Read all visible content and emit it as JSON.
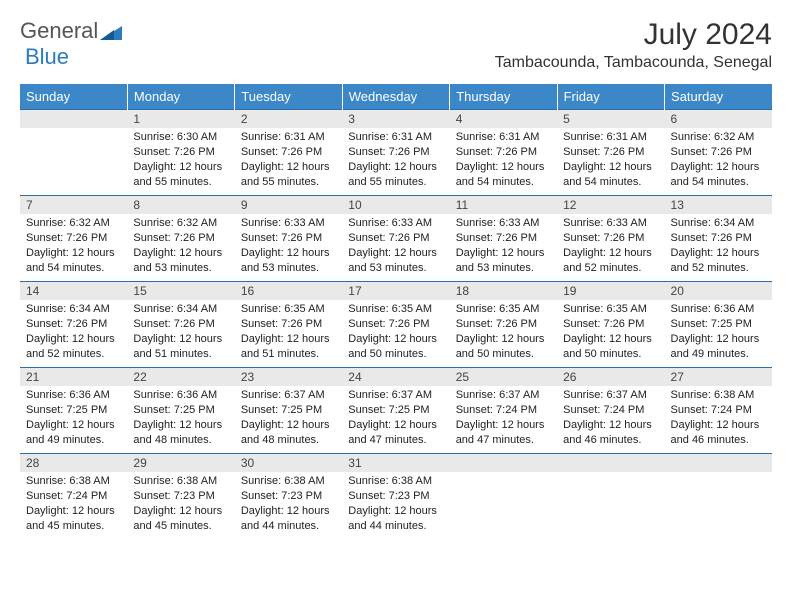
{
  "logo": {
    "text1": "General",
    "text2": "Blue"
  },
  "title": "July 2024",
  "location": "Tambacounda, Tambacounda, Senegal",
  "colors": {
    "header_bg": "#3c87c7",
    "header_text": "#ffffff",
    "daynum_bg": "#e9e9e9",
    "row_divider": "#2b6fa8",
    "logo_gray": "#555555",
    "logo_blue": "#2b7bbf"
  },
  "day_headers": [
    "Sunday",
    "Monday",
    "Tuesday",
    "Wednesday",
    "Thursday",
    "Friday",
    "Saturday"
  ],
  "weeks": [
    [
      {
        "num": "",
        "sunrise": "",
        "sunset": "",
        "daylight": ""
      },
      {
        "num": "1",
        "sunrise": "Sunrise: 6:30 AM",
        "sunset": "Sunset: 7:26 PM",
        "daylight": "Daylight: 12 hours and 55 minutes."
      },
      {
        "num": "2",
        "sunrise": "Sunrise: 6:31 AM",
        "sunset": "Sunset: 7:26 PM",
        "daylight": "Daylight: 12 hours and 55 minutes."
      },
      {
        "num": "3",
        "sunrise": "Sunrise: 6:31 AM",
        "sunset": "Sunset: 7:26 PM",
        "daylight": "Daylight: 12 hours and 55 minutes."
      },
      {
        "num": "4",
        "sunrise": "Sunrise: 6:31 AM",
        "sunset": "Sunset: 7:26 PM",
        "daylight": "Daylight: 12 hours and 54 minutes."
      },
      {
        "num": "5",
        "sunrise": "Sunrise: 6:31 AM",
        "sunset": "Sunset: 7:26 PM",
        "daylight": "Daylight: 12 hours and 54 minutes."
      },
      {
        "num": "6",
        "sunrise": "Sunrise: 6:32 AM",
        "sunset": "Sunset: 7:26 PM",
        "daylight": "Daylight: 12 hours and 54 minutes."
      }
    ],
    [
      {
        "num": "7",
        "sunrise": "Sunrise: 6:32 AM",
        "sunset": "Sunset: 7:26 PM",
        "daylight": "Daylight: 12 hours and 54 minutes."
      },
      {
        "num": "8",
        "sunrise": "Sunrise: 6:32 AM",
        "sunset": "Sunset: 7:26 PM",
        "daylight": "Daylight: 12 hours and 53 minutes."
      },
      {
        "num": "9",
        "sunrise": "Sunrise: 6:33 AM",
        "sunset": "Sunset: 7:26 PM",
        "daylight": "Daylight: 12 hours and 53 minutes."
      },
      {
        "num": "10",
        "sunrise": "Sunrise: 6:33 AM",
        "sunset": "Sunset: 7:26 PM",
        "daylight": "Daylight: 12 hours and 53 minutes."
      },
      {
        "num": "11",
        "sunrise": "Sunrise: 6:33 AM",
        "sunset": "Sunset: 7:26 PM",
        "daylight": "Daylight: 12 hours and 53 minutes."
      },
      {
        "num": "12",
        "sunrise": "Sunrise: 6:33 AM",
        "sunset": "Sunset: 7:26 PM",
        "daylight": "Daylight: 12 hours and 52 minutes."
      },
      {
        "num": "13",
        "sunrise": "Sunrise: 6:34 AM",
        "sunset": "Sunset: 7:26 PM",
        "daylight": "Daylight: 12 hours and 52 minutes."
      }
    ],
    [
      {
        "num": "14",
        "sunrise": "Sunrise: 6:34 AM",
        "sunset": "Sunset: 7:26 PM",
        "daylight": "Daylight: 12 hours and 52 minutes."
      },
      {
        "num": "15",
        "sunrise": "Sunrise: 6:34 AM",
        "sunset": "Sunset: 7:26 PM",
        "daylight": "Daylight: 12 hours and 51 minutes."
      },
      {
        "num": "16",
        "sunrise": "Sunrise: 6:35 AM",
        "sunset": "Sunset: 7:26 PM",
        "daylight": "Daylight: 12 hours and 51 minutes."
      },
      {
        "num": "17",
        "sunrise": "Sunrise: 6:35 AM",
        "sunset": "Sunset: 7:26 PM",
        "daylight": "Daylight: 12 hours and 50 minutes."
      },
      {
        "num": "18",
        "sunrise": "Sunrise: 6:35 AM",
        "sunset": "Sunset: 7:26 PM",
        "daylight": "Daylight: 12 hours and 50 minutes."
      },
      {
        "num": "19",
        "sunrise": "Sunrise: 6:35 AM",
        "sunset": "Sunset: 7:26 PM",
        "daylight": "Daylight: 12 hours and 50 minutes."
      },
      {
        "num": "20",
        "sunrise": "Sunrise: 6:36 AM",
        "sunset": "Sunset: 7:25 PM",
        "daylight": "Daylight: 12 hours and 49 minutes."
      }
    ],
    [
      {
        "num": "21",
        "sunrise": "Sunrise: 6:36 AM",
        "sunset": "Sunset: 7:25 PM",
        "daylight": "Daylight: 12 hours and 49 minutes."
      },
      {
        "num": "22",
        "sunrise": "Sunrise: 6:36 AM",
        "sunset": "Sunset: 7:25 PM",
        "daylight": "Daylight: 12 hours and 48 minutes."
      },
      {
        "num": "23",
        "sunrise": "Sunrise: 6:37 AM",
        "sunset": "Sunset: 7:25 PM",
        "daylight": "Daylight: 12 hours and 48 minutes."
      },
      {
        "num": "24",
        "sunrise": "Sunrise: 6:37 AM",
        "sunset": "Sunset: 7:25 PM",
        "daylight": "Daylight: 12 hours and 47 minutes."
      },
      {
        "num": "25",
        "sunrise": "Sunrise: 6:37 AM",
        "sunset": "Sunset: 7:24 PM",
        "daylight": "Daylight: 12 hours and 47 minutes."
      },
      {
        "num": "26",
        "sunrise": "Sunrise: 6:37 AM",
        "sunset": "Sunset: 7:24 PM",
        "daylight": "Daylight: 12 hours and 46 minutes."
      },
      {
        "num": "27",
        "sunrise": "Sunrise: 6:38 AM",
        "sunset": "Sunset: 7:24 PM",
        "daylight": "Daylight: 12 hours and 46 minutes."
      }
    ],
    [
      {
        "num": "28",
        "sunrise": "Sunrise: 6:38 AM",
        "sunset": "Sunset: 7:24 PM",
        "daylight": "Daylight: 12 hours and 45 minutes."
      },
      {
        "num": "29",
        "sunrise": "Sunrise: 6:38 AM",
        "sunset": "Sunset: 7:23 PM",
        "daylight": "Daylight: 12 hours and 45 minutes."
      },
      {
        "num": "30",
        "sunrise": "Sunrise: 6:38 AM",
        "sunset": "Sunset: 7:23 PM",
        "daylight": "Daylight: 12 hours and 44 minutes."
      },
      {
        "num": "31",
        "sunrise": "Sunrise: 6:38 AM",
        "sunset": "Sunset: 7:23 PM",
        "daylight": "Daylight: 12 hours and 44 minutes."
      },
      {
        "num": "",
        "sunrise": "",
        "sunset": "",
        "daylight": ""
      },
      {
        "num": "",
        "sunrise": "",
        "sunset": "",
        "daylight": ""
      },
      {
        "num": "",
        "sunrise": "",
        "sunset": "",
        "daylight": ""
      }
    ]
  ]
}
